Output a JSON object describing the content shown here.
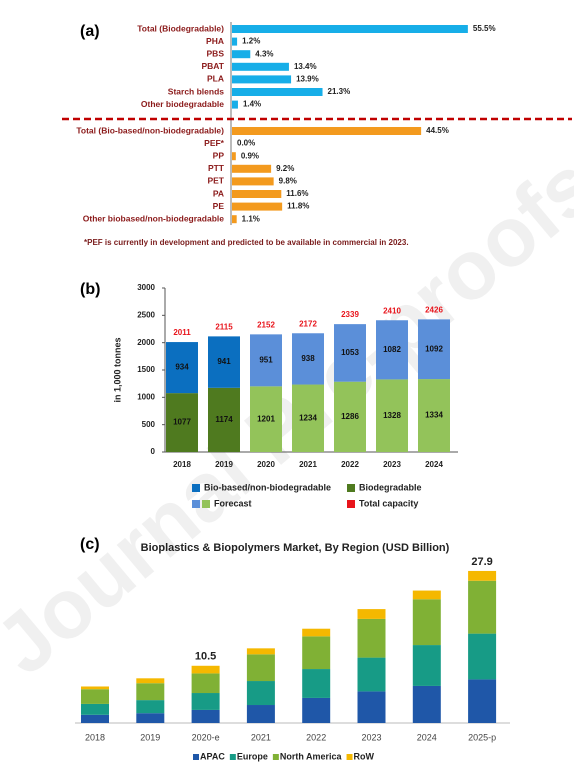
{
  "watermark": "Journal Pre-proofs",
  "chart_data": [
    {
      "type": "hbar",
      "panel_label": "(a)",
      "groups": [
        {
          "color": "#17aee8",
          "categories": [
            "Total (Biodegradable)",
            "PHA",
            "PBS",
            "PBAT",
            "PLA",
            "Starch blends",
            "Other biodegradable"
          ],
          "values": [
            55.5,
            1.2,
            4.3,
            13.4,
            13.9,
            21.3,
            1.4
          ],
          "value_labels": [
            "55.5%",
            "1.2%",
            "4.3%",
            "13.4%",
            "13.9%",
            "21.3%",
            "1.4%"
          ]
        },
        {
          "color": "#f39a1e",
          "categories": [
            "Total (Bio-based/non-biodegradable)",
            "PEF*",
            "PP",
            "PTT",
            "PET",
            "PA",
            "PE",
            "Other biobased/non-biodegradable"
          ],
          "values": [
            44.5,
            0.0,
            0.9,
            9.2,
            9.8,
            11.6,
            11.8,
            1.1
          ],
          "value_labels": [
            "44.5%",
            "0.0%",
            "0.9%",
            "9.2%",
            "9.8%",
            "11.6%",
            "11.8%",
            "1.1%"
          ]
        }
      ],
      "divider": {
        "color": "#c00000",
        "style": "dashed"
      },
      "footnote": "*PEF is currently in development and predicted to be available in commercial in 2023."
    },
    {
      "type": "stacked_bar",
      "panel_label": "(b)",
      "ylabel": "in 1,000 tonnes",
      "categories": [
        "2018",
        "2019",
        "2020",
        "2021",
        "2022",
        "2023",
        "2024"
      ],
      "ylim": [
        0,
        3000
      ],
      "yticks": [
        0,
        500,
        1000,
        1500,
        2000,
        2500,
        3000
      ],
      "data_labels": true,
      "series": [
        {
          "name": "Biodegradable",
          "color": "#4f7a1f",
          "colors": [
            "#4f7a1f",
            "#4f7a1f",
            "#93c35a",
            "#93c35a",
            "#93c35a",
            "#93c35a",
            "#93c35a"
          ],
          "values": [
            1077,
            1174,
            1201,
            1234,
            1286,
            1328,
            1334
          ]
        },
        {
          "name": "Bio-based/non-biodegradable",
          "color": "#0b6fc0",
          "colors": [
            "#0b6fc0",
            "#0b6fc0",
            "#5b8fd9",
            "#5b8fd9",
            "#5b8fd9",
            "#5b8fd9",
            "#5b8fd9"
          ],
          "values": [
            934,
            941,
            951,
            938,
            1053,
            1082,
            1092
          ]
        }
      ],
      "forecast": {
        "name": "Forecast",
        "colors": [
          "#5b8fd9",
          "#93c35a"
        ]
      },
      "totals": {
        "name": "Total capacity",
        "color": "#e8141b",
        "values": [
          2011,
          2115,
          2152,
          2172,
          2339,
          2410,
          2426
        ]
      }
    },
    {
      "type": "stacked_bar",
      "panel_label": "(c)",
      "title": "Bioplastics & Biopolymers Market, By Region (USD Billion)",
      "categories": [
        "2018",
        "2019",
        "2020-e",
        "2021",
        "2022",
        "2023",
        "2024",
        "2025-p"
      ],
      "data_labels": false,
      "legend": "bottom",
      "series": [
        {
          "name": "APAC",
          "color": "#1f57a8",
          "values": [
            1.5,
            1.8,
            2.4,
            3.3,
            4.6,
            5.8,
            6.8,
            8.0
          ]
        },
        {
          "name": "Europe",
          "color": "#179b86",
          "values": [
            2.0,
            2.4,
            3.1,
            4.4,
            5.3,
            6.2,
            7.5,
            8.4
          ]
        },
        {
          "name": "North America",
          "color": "#80b135",
          "values": [
            2.7,
            3.1,
            3.6,
            4.9,
            6.0,
            7.1,
            8.4,
            9.7
          ]
        },
        {
          "name": "RoW",
          "color": "#f5b800",
          "values": [
            0.5,
            0.9,
            1.4,
            1.1,
            1.4,
            1.8,
            1.6,
            1.8
          ]
        }
      ],
      "totals": {
        "values": [
          null,
          null,
          10.5,
          null,
          null,
          null,
          null,
          27.9
        ]
      }
    }
  ]
}
